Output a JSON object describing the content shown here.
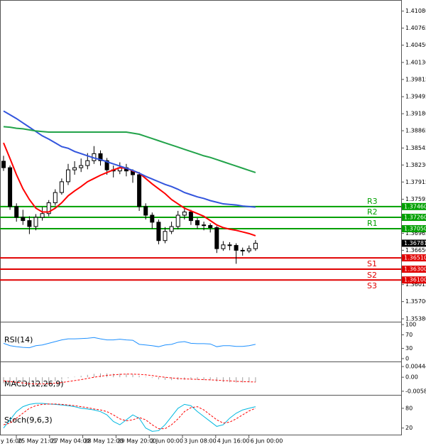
{
  "chart_data": [
    {
      "type": "candlestick",
      "open": [
        1.383,
        1.3818,
        1.3746,
        1.3726,
        1.372,
        1.3709,
        1.3726,
        1.3733,
        1.3753,
        1.3772,
        1.3792,
        1.3814,
        1.3818,
        1.3822,
        1.3831,
        1.3844,
        1.3831,
        1.3814,
        1.3812,
        1.3818,
        1.3812,
        1.3805,
        1.3746,
        1.373,
        1.3717,
        1.3683,
        1.37,
        1.3709,
        1.373,
        1.3736,
        1.372,
        1.3712,
        1.3711,
        1.3707,
        1.3668,
        1.3675,
        1.3674,
        1.3665,
        1.3664,
        1.3668
      ],
      "high": [
        1.384,
        1.3822,
        1.3752,
        1.374,
        1.3728,
        1.3732,
        1.3745,
        1.3758,
        1.3778,
        1.3798,
        1.3825,
        1.383,
        1.3835,
        1.3845,
        1.3858,
        1.385,
        1.3836,
        1.3822,
        1.3828,
        1.3825,
        1.3815,
        1.381,
        1.3752,
        1.3735,
        1.3722,
        1.3708,
        1.3718,
        1.3738,
        1.3745,
        1.374,
        1.3725,
        1.3718,
        1.3715,
        1.371,
        1.3682,
        1.368,
        1.3678,
        1.367,
        1.3674,
        1.3684
      ],
      "low": [
        1.3812,
        1.374,
        1.3718,
        1.3712,
        1.3695,
        1.3702,
        1.372,
        1.3728,
        1.3748,
        1.3768,
        1.3786,
        1.3805,
        1.381,
        1.3815,
        1.3825,
        1.3822,
        1.3805,
        1.38,
        1.3806,
        1.3802,
        1.379,
        1.3738,
        1.3722,
        1.3705,
        1.3676,
        1.3678,
        1.3695,
        1.3704,
        1.3722,
        1.3712,
        1.3705,
        1.3702,
        1.3698,
        1.366,
        1.3664,
        1.3665,
        1.364,
        1.3655,
        1.366,
        1.3664
      ],
      "close": [
        1.3818,
        1.3746,
        1.3726,
        1.372,
        1.3709,
        1.3726,
        1.3733,
        1.3753,
        1.3772,
        1.3792,
        1.3814,
        1.3818,
        1.3822,
        1.3831,
        1.3844,
        1.3831,
        1.3814,
        1.3812,
        1.3818,
        1.3812,
        1.3805,
        1.3746,
        1.373,
        1.3717,
        1.3683,
        1.37,
        1.3709,
        1.373,
        1.3736,
        1.372,
        1.3712,
        1.3711,
        1.3707,
        1.3668,
        1.3675,
        1.3674,
        1.3665,
        1.3664,
        1.3668,
        1.36781
      ],
      "up_color": "#000000",
      "down_color": "#000000",
      "series": [
        {
          "color": "#ff0000",
          "style": "solid",
          "values": [
            1.3864,
            1.3835,
            1.3805,
            1.3779,
            1.3759,
            1.3743,
            1.3736,
            1.3736,
            1.3743,
            1.3753,
            1.3766,
            1.3775,
            1.3783,
            1.3792,
            1.3798,
            1.3804,
            1.3809,
            1.3814,
            1.3818,
            1.3817,
            1.3812,
            1.3808,
            1.3798,
            1.3788,
            1.3779,
            1.377,
            1.3759,
            1.3751,
            1.3743,
            1.3738,
            1.3733,
            1.3728,
            1.372,
            1.3712,
            1.3707,
            1.3704,
            1.3702,
            1.3699,
            1.3696,
            1.3692
          ]
        },
        {
          "color": "#3355dd",
          "style": "solid",
          "values": [
            1.3923,
            1.3916,
            1.3909,
            1.3901,
            1.3893,
            1.3885,
            1.3877,
            1.3871,
            1.3864,
            1.3857,
            1.3854,
            1.3848,
            1.3844,
            1.384,
            1.3836,
            1.3833,
            1.3829,
            1.3825,
            1.3821,
            1.3817,
            1.3813,
            1.3808,
            1.3802,
            1.3797,
            1.3792,
            1.3787,
            1.3783,
            1.3778,
            1.3772,
            1.3768,
            1.3764,
            1.3761,
            1.3757,
            1.3754,
            1.3751,
            1.375,
            1.3749,
            1.3747,
            1.3746,
            1.3745
          ]
        },
        {
          "color": "#22a34a",
          "style": "solid",
          "values": [
            1.3894,
            1.3893,
            1.3891,
            1.389,
            1.3888,
            1.3886,
            1.3885,
            1.3884,
            1.3884,
            1.3884,
            1.3884,
            1.3884,
            1.3884,
            1.3884,
            1.3884,
            1.3884,
            1.3884,
            1.3884,
            1.3884,
            1.3884,
            1.3882,
            1.388,
            1.3876,
            1.3872,
            1.3868,
            1.3864,
            1.386,
            1.3856,
            1.3852,
            1.3848,
            1.3844,
            1.384,
            1.3837,
            1.3833,
            1.3829,
            1.3825,
            1.3821,
            1.3817,
            1.3813,
            1.3809
          ]
        }
      ],
      "ylim": [
        1.3534,
        1.4126
      ],
      "yticks": [
        {
          "value": 1.4108,
          "label": "1.41080"
        },
        {
          "value": 1.40765,
          "label": "1.40765"
        },
        {
          "value": 1.4045,
          "label": "1.40450"
        },
        {
          "value": 1.4013,
          "label": "1.40130"
        },
        {
          "value": 1.39815,
          "label": "1.39815"
        },
        {
          "value": 1.39495,
          "label": "1.39495"
        },
        {
          "value": 1.3918,
          "label": "1.39180"
        },
        {
          "value": 1.38865,
          "label": "1.38865"
        },
        {
          "value": 1.38545,
          "label": "1.38545"
        },
        {
          "value": 1.3823,
          "label": "1.38230"
        },
        {
          "value": 1.37915,
          "label": "1.37915"
        },
        {
          "value": 1.37595,
          "label": "1.37595"
        },
        {
          "value": 1.36965,
          "label": "1.36965"
        },
        {
          "value": 1.3665,
          "label": "1.36650"
        },
        {
          "value": 1.36015,
          "label": "1.36015"
        },
        {
          "value": 1.357,
          "label": "1.35700"
        },
        {
          "value": 1.3538,
          "label": "1.35380"
        }
      ],
      "levels": [
        {
          "name": "R3",
          "value": 1.3746,
          "label": "1.37460",
          "color": "#00a000"
        },
        {
          "name": "R2",
          "value": 1.3726,
          "label": "1.37260",
          "color": "#00a000"
        },
        {
          "name": "R1",
          "value": 1.3705,
          "label": "1.37050",
          "color": "#00a000"
        },
        {
          "name": "S1",
          "value": 1.3651,
          "label": "1.36510",
          "color": "#e00000"
        },
        {
          "name": "S2",
          "value": 1.363,
          "label": "1.36300",
          "color": "#e00000"
        },
        {
          "name": "S3",
          "value": 1.361,
          "label": "1.36100",
          "color": "#e00000"
        }
      ],
      "current_price": 1.36781,
      "time_labels": [
        "y 16:00",
        "25 May 21:01",
        "27 May 04:00",
        "28 May 12:00",
        "29 May 20:00",
        "2 Jun 00:00",
        "3 Jun 08:00",
        "4 Jun 16:00",
        "6 Jun 00:00"
      ]
    },
    {
      "type": "line",
      "title": "RSI(14)",
      "ylim": [
        -6.4,
        104.3
      ],
      "yticks": [
        100,
        70,
        30,
        0
      ],
      "series": [
        {
          "color": "#1e90ff",
          "style": "solid",
          "values": [
            45,
            38,
            35,
            33,
            32,
            38,
            40,
            45,
            50,
            55,
            58,
            58,
            59,
            60,
            62,
            58,
            55,
            55,
            57,
            55,
            54,
            42,
            40,
            38,
            35,
            40,
            42,
            48,
            50,
            45,
            44,
            44,
            43,
            35,
            38,
            38,
            36,
            36,
            38,
            42
          ]
        }
      ]
    },
    {
      "type": "line",
      "title": "MACD(12,26,9)",
      "ylim": [
        -0.00704,
        0.00596
      ],
      "yticks": [
        0.004445,
        {
          "value": 0,
          "label": "0.00"
        },
        -0.005827
      ],
      "series": [
        {
          "color": "#a0a0a0",
          "style": "bars",
          "values": [
            -0.0025,
            -0.0028,
            -0.003,
            -0.0032,
            -0.0033,
            -0.003,
            -0.0027,
            -0.0022,
            -0.0016,
            -0.001,
            -0.0004,
            0.0002,
            0.0006,
            0.001,
            0.0014,
            0.0016,
            0.0016,
            0.0015,
            0.0015,
            0.0014,
            0.0012,
            0.0006,
            0.0002,
            -0.0003,
            -0.0009,
            -0.0011,
            -0.0012,
            -0.0011,
            -0.001,
            -0.001,
            -0.0011,
            -0.0012,
            -0.0013,
            -0.0018,
            -0.002,
            -0.0021,
            -0.0022,
            -0.0022,
            -0.0021,
            -0.002
          ]
        },
        {
          "color": "#ff0000",
          "style": "dashed",
          "values": [
            -0.0015,
            -0.0018,
            -0.0021,
            -0.0024,
            -0.0027,
            -0.0028,
            -0.0028,
            -0.0027,
            -0.0025,
            -0.0022,
            -0.0018,
            -0.0014,
            -0.001,
            -0.0005,
            0,
            0.0004,
            0.0008,
            0.001,
            0.0012,
            0.0013,
            0.0013,
            0.0012,
            0.001,
            0.0007,
            0.0003,
            0,
            -0.0003,
            -0.0005,
            -0.0007,
            -0.0008,
            -0.0009,
            -0.001,
            -0.0011,
            -0.0012,
            -0.0014,
            -0.0015,
            -0.0017,
            -0.0018,
            -0.0019,
            -0.002
          ]
        }
      ]
    },
    {
      "type": "line",
      "title": "Stoch(9,6,3)",
      "ylim": [
        0,
        116.5
      ],
      "yticks": [
        80,
        20
      ],
      "series": [
        {
          "color": "#00b8e0",
          "style": "solid",
          "values": [
            20,
            45,
            70,
            85,
            92,
            95,
            95,
            93,
            92,
            90,
            88,
            85,
            80,
            78,
            75,
            70,
            60,
            40,
            30,
            45,
            60,
            50,
            20,
            10,
            12,
            30,
            55,
            80,
            92,
            88,
            70,
            55,
            40,
            25,
            30,
            50,
            65,
            75,
            80,
            85
          ]
        },
        {
          "color": "#ff0000",
          "style": "dashed",
          "values": [
            30,
            35,
            50,
            65,
            80,
            88,
            92,
            93,
            93,
            92,
            90,
            88,
            85,
            82,
            78,
            75,
            70,
            60,
            48,
            42,
            45,
            52,
            45,
            30,
            18,
            18,
            30,
            48,
            70,
            82,
            85,
            75,
            60,
            45,
            35,
            38,
            48,
            60,
            72,
            80
          ]
        }
      ]
    }
  ]
}
